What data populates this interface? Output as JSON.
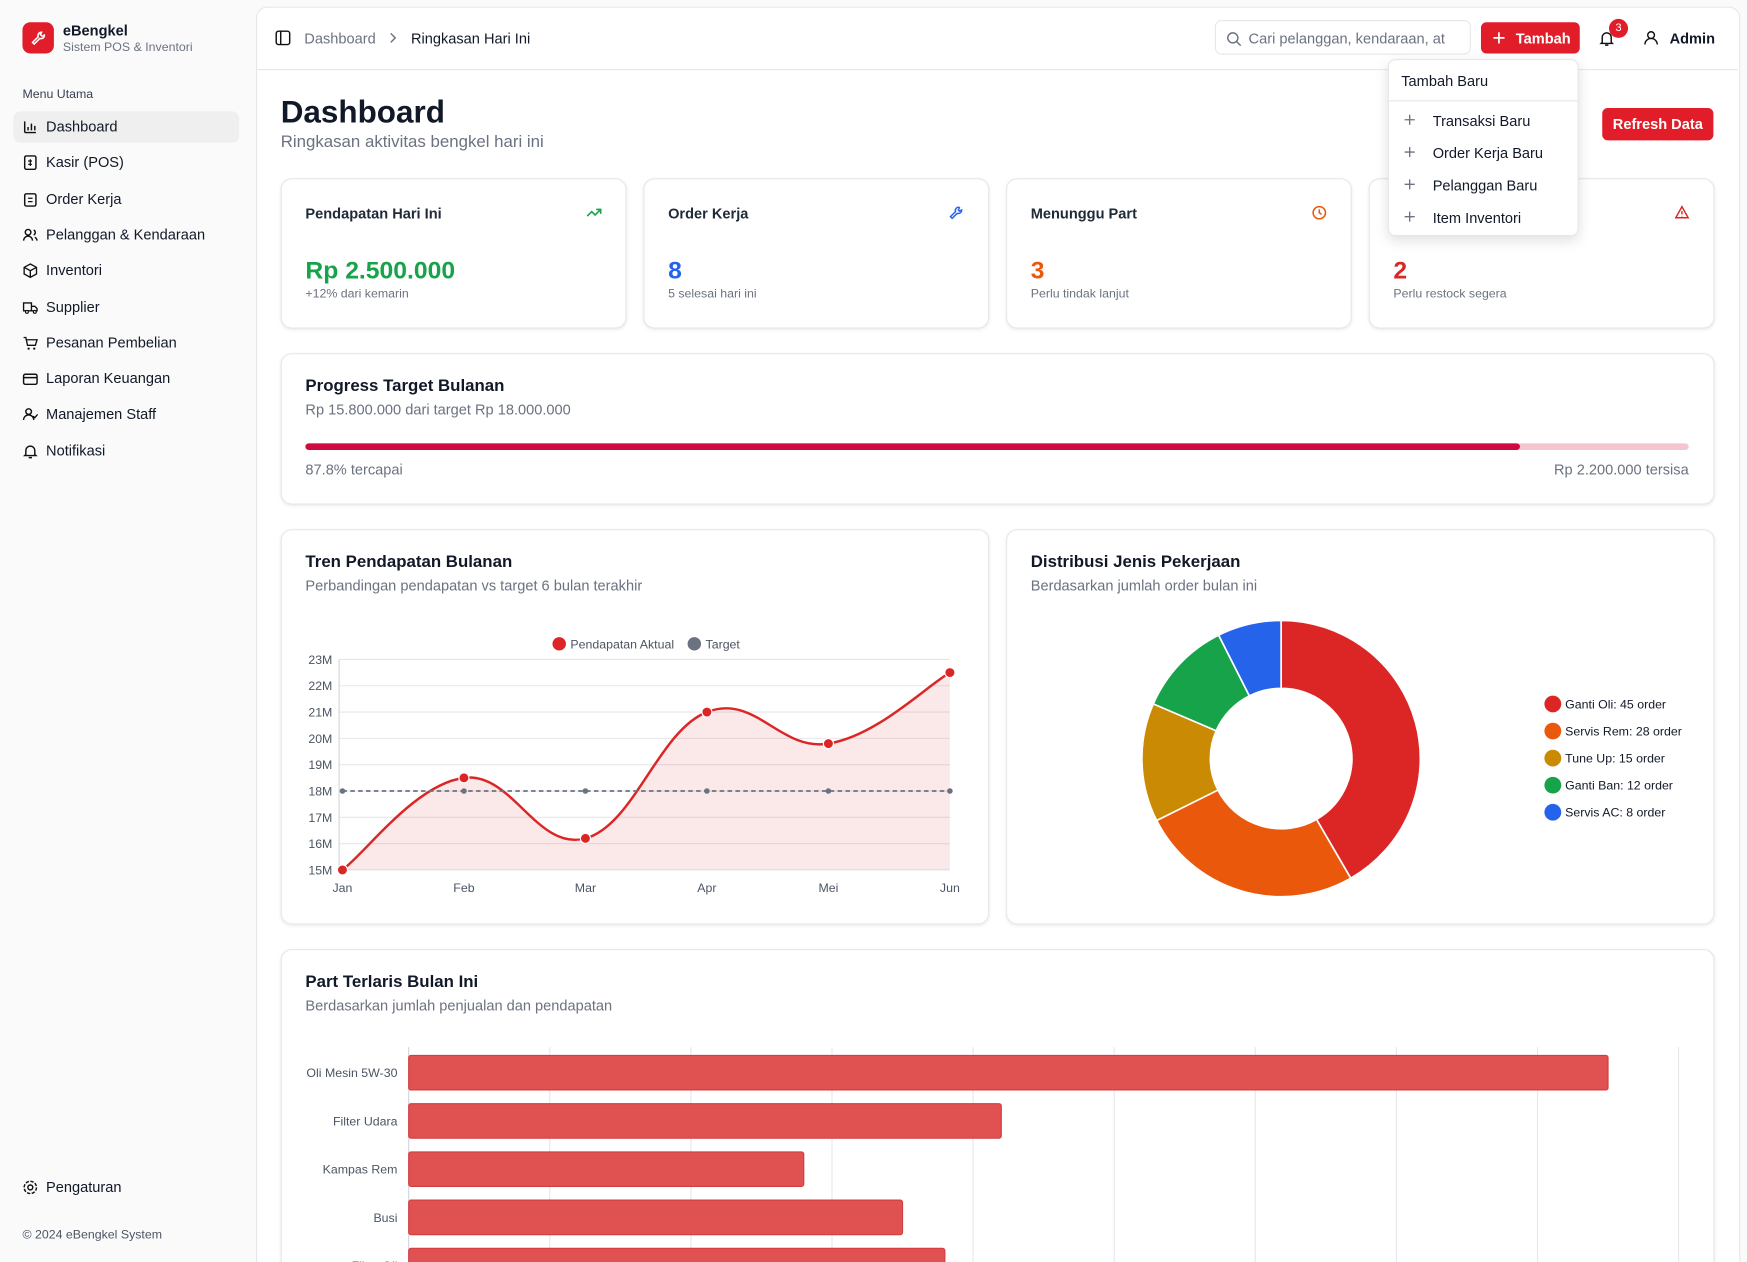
{
  "sidebar": {
    "brand": "eBengkel",
    "tagline": "Sistem POS & Inventori",
    "section": "Menu Utama",
    "menu": [
      "Dashboard",
      "Kasir (POS)",
      "Order Kerja",
      "Pelanggan & Kendaraan",
      "Inventori",
      "Supplier",
      "Pesanan Pembelian",
      "Laporan Keuangan",
      "Manajemen Staff",
      "Notifikasi"
    ],
    "settings": "Pengaturan",
    "footer": "© 2024 eBengkel System"
  },
  "header": {
    "breadcrumb": [
      "Dashboard",
      "Ringkasan Hari Ini"
    ],
    "search_placeholder": "Cari pelanggan, kendaraan, at",
    "add_button": "Tambah",
    "notification_count": 3,
    "user": "Admin"
  },
  "add_menu": {
    "title": "Tambah Baru",
    "items": [
      "Transaksi Baru",
      "Order Kerja Baru",
      "Pelanggan Baru",
      "Item Inventori"
    ]
  },
  "page": {
    "title": "Dashboard",
    "subtitle": "Ringkasan aktivitas bengkel hari ini",
    "refresh_button": "Refresh Data"
  },
  "stats": [
    {
      "label": "Pendapatan Hari Ini",
      "value": "Rp 2.500.000",
      "note": "+12% dari kemarin"
    },
    {
      "label": "Order Kerja",
      "value": 8,
      "note": "5 selesai hari ini"
    },
    {
      "label": "Menunggu Part",
      "value": 3,
      "note": "Perlu tindak lanjut"
    },
    {
      "value": 2,
      "note": "Perlu restock segera"
    }
  ],
  "progress": {
    "title": "Progress Target Bulanan",
    "subtitle": "Rp 15.800.000 dari target Rp 18.000.000",
    "percent": 87.8,
    "percent_label": "87.8% tercapai",
    "remaining_label": "Rp 2.200.000 tersisa"
  },
  "chart_data": [
    {
      "type": "line",
      "title": "Tren Pendapatan Bulanan",
      "subtitle": "Perbandingan pendapatan vs target 6 bulan terakhir",
      "categories": [
        "Jan",
        "Feb",
        "Mar",
        "Apr",
        "Mei",
        "Jun"
      ],
      "series": [
        {
          "name": "Pendapatan Aktual",
          "color": "#dc2626",
          "values": [
            15.0,
            18.5,
            16.2,
            21.0,
            19.8,
            22.5
          ]
        },
        {
          "name": "Target",
          "color": "#6b7280",
          "values": [
            18,
            18,
            18,
            18,
            18,
            18
          ]
        }
      ],
      "ylim": [
        15,
        23
      ],
      "yticks": [
        {
          "value": 15,
          "label": "15M"
        },
        {
          "value": 16,
          "label": "16M"
        },
        {
          "value": 17,
          "label": "17M"
        },
        {
          "value": 18,
          "label": "18M"
        },
        {
          "value": 19,
          "label": "19M"
        },
        {
          "value": 20,
          "label": "20M"
        },
        {
          "value": 21,
          "label": "21M"
        },
        {
          "value": 22,
          "label": "22M"
        },
        {
          "value": 23,
          "label": "23M"
        }
      ],
      "grid": true,
      "legend": "top"
    },
    {
      "type": "doughnut",
      "title": "Distribusi Jenis Pekerjaan",
      "subtitle": "Berdasarkan jumlah order bulan ini",
      "categories": [
        "Ganti Oli: 45 order",
        "Servis Rem: 28 order",
        "Tune Up: 15 order",
        "Ganti Ban: 12 order",
        "Servis AC: 8 order"
      ],
      "values": [
        45,
        28,
        15,
        12,
        8
      ],
      "colors": [
        "#dc2626",
        "#ea580c",
        "#ca8a04",
        "#16a34a",
        "#2563eb"
      ],
      "legend": "right"
    },
    {
      "type": "bar",
      "orientation": "horizontal",
      "title": "Part Terlaris Bulan Ini",
      "subtitle": "Berdasarkan jumlah penjualan dan pendapatan",
      "categories": [
        "Oli Mesin 5W-30",
        "Filter Udara",
        "Kampas Rem",
        "Busi",
        "Filter Oli"
      ],
      "values": [
        42.5,
        21,
        14,
        17.5,
        19
      ],
      "color": "#e05252",
      "xlim": [
        0,
        45
      ],
      "xticks": [
        0,
        5,
        10,
        15,
        20,
        25,
        30,
        35,
        40,
        45
      ],
      "grid": true
    }
  ]
}
